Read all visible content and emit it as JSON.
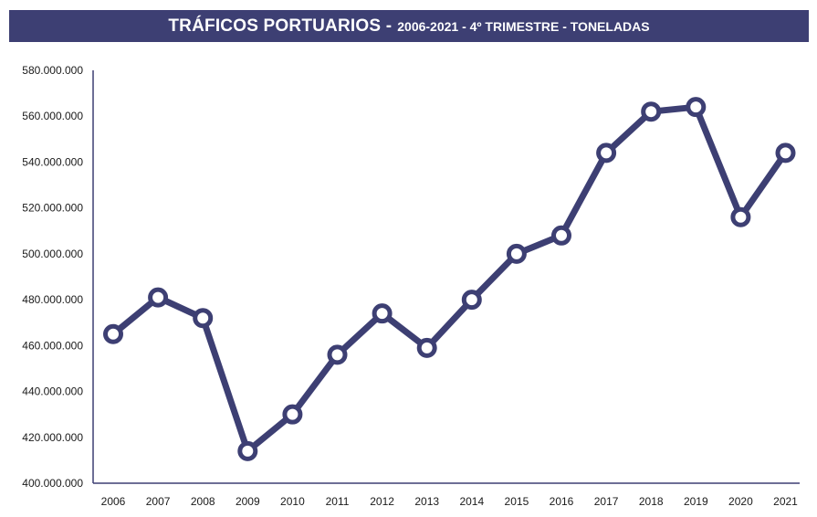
{
  "chart_data": {
    "type": "line",
    "title": "TRÁFICOS PORTUARIOS -",
    "subtitle": "2006-2021 - 4º TRIMESTRE - TONELADAS",
    "xlabel": "",
    "ylabel": "",
    "categories": [
      "2006",
      "2007",
      "2008",
      "2009",
      "2010",
      "2011",
      "2012",
      "2013",
      "2014",
      "2015",
      "2016",
      "2017",
      "2018",
      "2019",
      "2020",
      "2021"
    ],
    "series": [
      {
        "values": [
          465000000,
          481000000,
          472000000,
          414000000,
          430000000,
          456000000,
          474000000,
          459000000,
          480000000,
          500000000,
          508000000,
          544000000,
          562000000,
          564000000,
          516000000,
          544000000
        ]
      }
    ],
    "ylim": [
      400000000,
      580000000
    ],
    "yticks": [
      "400.000.000",
      "420.000.000",
      "440.000.000",
      "460.000.000",
      "480.000.000",
      "500.000.000",
      "520.000.000",
      "540.000.000",
      "560.000.000",
      "580.000.000"
    ],
    "ytick_values": [
      400000000,
      420000000,
      440000000,
      460000000,
      480000000,
      500000000,
      520000000,
      540000000,
      560000000,
      580000000
    ],
    "grid": false,
    "legend": "none",
    "colors": {
      "line": "#3d3f73",
      "title_bg": "#3d3f73",
      "axis": "#3d3f73"
    }
  }
}
